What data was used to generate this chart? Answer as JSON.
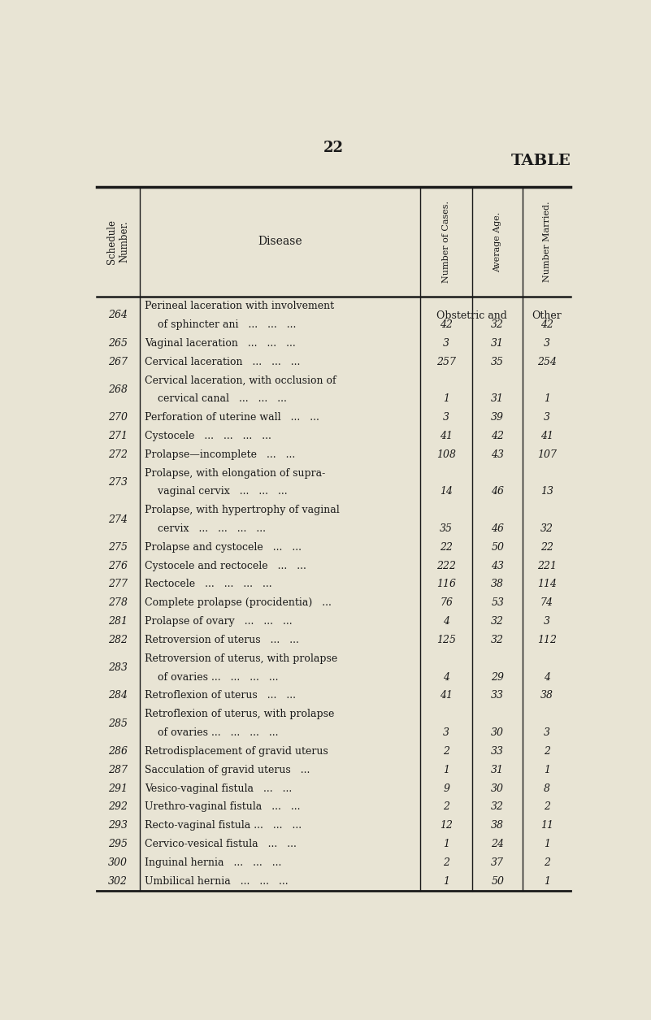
{
  "page_number": "22",
  "title": "TABLE",
  "bg_color": "#e8e4d4",
  "text_color": "#1a1a1a",
  "col_header_schedule": "Schedule\nNumber.",
  "col_header_disease": "Disease",
  "col_header_cases": "Number of Cases.",
  "col_header_age": "Average Age.",
  "col_header_married": "Number Married.",
  "subheader_left": "Obstetric and",
  "subheader_right": "Other",
  "rows": [
    {
      "num": "264",
      "disease_line1": "Perineal laceration with involvement",
      "disease_line2": "    of sphincter ani   ...   ...   ...",
      "cases": "42",
      "age": "32",
      "married": "42"
    },
    {
      "num": "265",
      "disease_line1": "Vaginal laceration   ...   ...   ...",
      "disease_line2": "",
      "cases": "3",
      "age": "31",
      "married": "3"
    },
    {
      "num": "267",
      "disease_line1": "Cervical laceration   ...   ...   ...",
      "disease_line2": "",
      "cases": "257",
      "age": "35",
      "married": "254"
    },
    {
      "num": "268",
      "disease_line1": "Cervical laceration, with occlusion of",
      "disease_line2": "    cervical canal   ...   ...   ...",
      "cases": "1",
      "age": "31",
      "married": "1"
    },
    {
      "num": "270",
      "disease_line1": "Perforation of uterine wall   ...   ...",
      "disease_line2": "",
      "cases": "3",
      "age": "39",
      "married": "3"
    },
    {
      "num": "271",
      "disease_line1": "Cystocele   ...   ...   ...   ...",
      "disease_line2": "",
      "cases": "41",
      "age": "42",
      "married": "41"
    },
    {
      "num": "272",
      "disease_line1": "Prolapse—incomplete   ...   ...",
      "disease_line2": "",
      "cases": "108",
      "age": "43",
      "married": "107"
    },
    {
      "num": "273",
      "disease_line1": "Prolapse, with elongation of supra-",
      "disease_line2": "    vaginal cervix   ...   ...   ...",
      "cases": "14",
      "age": "46",
      "married": "13"
    },
    {
      "num": "274",
      "disease_line1": "Prolapse, with hypertrophy of vaginal",
      "disease_line2": "    cervix   ...   ...   ...   ...",
      "cases": "35",
      "age": "46",
      "married": "32"
    },
    {
      "num": "275",
      "disease_line1": "Prolapse and cystocele   ...   ...",
      "disease_line2": "",
      "cases": "22",
      "age": "50",
      "married": "22"
    },
    {
      "num": "276",
      "disease_line1": "Cystocele and rectocele   ...   ...",
      "disease_line2": "",
      "cases": "222",
      "age": "43",
      "married": "221"
    },
    {
      "num": "277",
      "disease_line1": "Rectocele   ...   ...   ...   ...",
      "disease_line2": "",
      "cases": "116",
      "age": "38",
      "married": "114"
    },
    {
      "num": "278",
      "disease_line1": "Complete prolapse (procidentia)   ...",
      "disease_line2": "",
      "cases": "76",
      "age": "53",
      "married": "74"
    },
    {
      "num": "281",
      "disease_line1": "Prolapse of ovary   ...   ...   ...",
      "disease_line2": "",
      "cases": "4",
      "age": "32",
      "married": "3"
    },
    {
      "num": "282",
      "disease_line1": "Retroversion of uterus   ...   ...",
      "disease_line2": "",
      "cases": "125",
      "age": "32",
      "married": "112"
    },
    {
      "num": "283",
      "disease_line1": "Retroversion of uterus, with prolapse",
      "disease_line2": "    of ovaries ...   ...   ...   ...",
      "cases": "4",
      "age": "29",
      "married": "4"
    },
    {
      "num": "284",
      "disease_line1": "Retroflexion of uterus   ...   ...",
      "disease_line2": "",
      "cases": "41",
      "age": "33",
      "married": "38"
    },
    {
      "num": "285",
      "disease_line1": "Retroflexion of uterus, with prolapse",
      "disease_line2": "    of ovaries ...   ...   ...   ...",
      "cases": "3",
      "age": "30",
      "married": "3"
    },
    {
      "num": "286",
      "disease_line1": "Retrodisplacement of gravid uterus",
      "disease_line2": "",
      "cases": "2",
      "age": "33",
      "married": "2"
    },
    {
      "num": "287",
      "disease_line1": "Sacculation of gravid uterus   ...",
      "disease_line2": "",
      "cases": "1",
      "age": "31",
      "married": "1"
    },
    {
      "num": "291",
      "disease_line1": "Vesico-vaginal fistula   ...   ...",
      "disease_line2": "",
      "cases": "9",
      "age": "30",
      "married": "8"
    },
    {
      "num": "292",
      "disease_line1": "Urethro-vaginal fistula   ...   ...",
      "disease_line2": "",
      "cases": "2",
      "age": "32",
      "married": "2"
    },
    {
      "num": "293",
      "disease_line1": "Recto-vaginal fistula ...   ...   ...",
      "disease_line2": "",
      "cases": "12",
      "age": "38",
      "married": "11"
    },
    {
      "num": "295",
      "disease_line1": "Cervico-vesical fistula   ...   ...",
      "disease_line2": "",
      "cases": "1",
      "age": "24",
      "married": "1"
    },
    {
      "num": "300",
      "disease_line1": "Inguinal hernia   ...   ...   ...",
      "disease_line2": "",
      "cases": "2",
      "age": "37",
      "married": "2"
    },
    {
      "num": "302",
      "disease_line1": "Umbilical hernia   ...   ...   ...",
      "disease_line2": "",
      "cases": "1",
      "age": "50",
      "married": "1"
    }
  ]
}
